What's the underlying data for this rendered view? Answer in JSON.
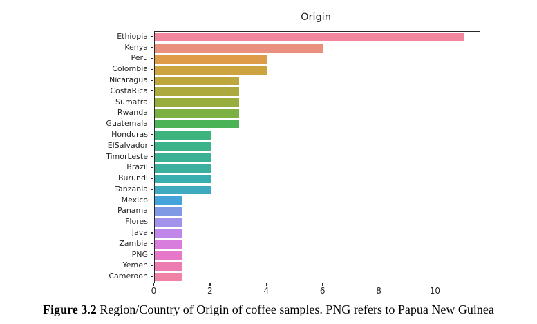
{
  "caption": {
    "label": "Figure 3.2",
    "text": "Region/Country of Origin of coffee samples. PNG refers to Papua New Guinea"
  },
  "chart_data": {
    "type": "bar",
    "orientation": "horizontal",
    "title": "Origin",
    "categories": [
      "Ethiopia",
      "Kenya",
      "Peru",
      "Colombia",
      "Nicaragua",
      "CostaRica",
      "Sumatra",
      "Rwanda",
      "Guatemala",
      "Honduras",
      "ElSalvador",
      "TimorLeste",
      "Brazil",
      "Burundi",
      "Tanzania",
      "Mexico",
      "Panama",
      "Flores",
      "Java",
      "Zambia",
      "PNG",
      "Yemen",
      "Cameroon"
    ],
    "values": [
      11,
      6,
      4,
      4,
      3,
      3,
      3,
      3,
      3,
      2,
      2,
      2,
      2,
      2,
      2,
      1,
      1,
      1,
      1,
      1,
      1,
      1,
      1
    ],
    "bar_colors": [
      "#f0879d",
      "#e9917e",
      "#de9c49",
      "#cda33f",
      "#bda73d",
      "#acaa3e",
      "#97ad3e",
      "#7db042",
      "#49b356",
      "#3db37e",
      "#3cb289",
      "#3bb193",
      "#3ab09d",
      "#39aeae",
      "#3fa9c0",
      "#45a3dc",
      "#8099e5",
      "#a392ec",
      "#c186e9",
      "#d87dde",
      "#e678c9",
      "#ec7bb1",
      "#ee83a6"
    ],
    "xlabel": "",
    "ylabel": "",
    "x_ticks": [
      0,
      2,
      4,
      6,
      8,
      10
    ],
    "xlim": [
      0,
      11.55
    ],
    "grid": false,
    "legend": false,
    "axis_color": "#2b2b2b",
    "text_color": "#262626"
  }
}
